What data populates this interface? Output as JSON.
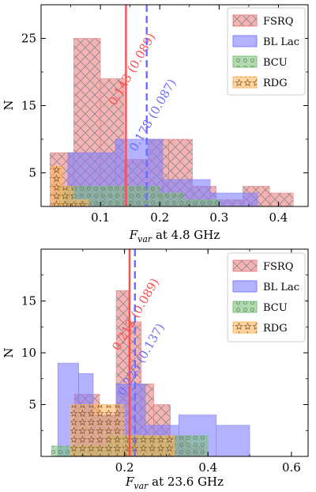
{
  "chart_data": [
    {
      "type": "bar",
      "xlabel_main": "F",
      "xlabel_sub": "var",
      "xlabel_rest": " at 4.8 GHz",
      "ylabel": "N",
      "xlim": [
        0,
        0.45
      ],
      "ylim": [
        0,
        30
      ],
      "xticks": [
        0.1,
        0.2,
        0.3,
        0.4
      ],
      "xtick_labels": [
        "0.1",
        "0.2",
        "0.3",
        "0.4"
      ],
      "yticks": [
        5,
        15,
        25
      ],
      "ytick_labels": [
        "5",
        "15",
        "25"
      ],
      "legend_position": "top-right",
      "series": [
        {
          "name": "FSRQ",
          "color": "#f08080",
          "hatch": "cross",
          "bins": [
            [
              0.015,
              0.055,
              8
            ],
            [
              0.055,
              0.1,
              25
            ],
            [
              0.1,
              0.14,
              19
            ],
            [
              0.14,
              0.18,
              7
            ],
            [
              0.18,
              0.215,
              10
            ],
            [
              0.215,
              0.255,
              10
            ],
            [
              0.255,
              0.295,
              3
            ],
            [
              0.295,
              0.34,
              1
            ],
            [
              0.34,
              0.385,
              3
            ],
            [
              0.385,
              0.425,
              2
            ]
          ]
        },
        {
          "name": "BL Lac",
          "color": "#7f7fff",
          "hatch": "none",
          "bins": [
            [
              0.045,
              0.125,
              8
            ],
            [
              0.125,
              0.205,
              10
            ],
            [
              0.205,
              0.285,
              4
            ],
            [
              0.285,
              0.365,
              2
            ],
            [
              0.365,
              0.445,
              0
            ]
          ]
        },
        {
          "name": "BCU",
          "color": "#7fbf7f",
          "hatch": "circle",
          "bins": [
            [
              0.03,
              0.125,
              3
            ],
            [
              0.125,
              0.2,
              3
            ],
            [
              0.2,
              0.24,
              2
            ],
            [
              0.24,
              0.3,
              1
            ]
          ]
        },
        {
          "name": "RDG",
          "color": "#ffb860",
          "hatch": "star",
          "bins": [
            [
              0.015,
              0.035,
              6
            ],
            [
              0.035,
              0.055,
              3
            ],
            [
              0.055,
              0.08,
              1
            ]
          ]
        }
      ],
      "vlines": [
        {
          "x": 0.143,
          "label": "0.143 (0.089)",
          "color": "#ff4d4d",
          "style": "solid"
        },
        {
          "x": 0.178,
          "label": "0.178 (0.087)",
          "color": "#6d6dff",
          "style": "dashed"
        }
      ]
    },
    {
      "type": "bar",
      "xlabel_main": "F",
      "xlabel_sub": "var",
      "xlabel_rest": " at 23.6 GHz",
      "ylabel": "N",
      "xlim": [
        0,
        0.64
      ],
      "ylim": [
        0,
        20
      ],
      "xticks": [
        0.2,
        0.4,
        0.6
      ],
      "xtick_labels": [
        "0.2",
        "0.4",
        "0.6"
      ],
      "yticks": [
        5,
        10,
        15
      ],
      "ytick_labels": [
        "5",
        "10",
        "15"
      ],
      "legend_position": "top-right",
      "series": [
        {
          "name": "FSRQ",
          "color": "#f08080",
          "hatch": "cross",
          "bins": [
            [
              0.08,
              0.14,
              6
            ],
            [
              0.14,
              0.18,
              4
            ],
            [
              0.18,
              0.21,
              16
            ],
            [
              0.21,
              0.24,
              13
            ],
            [
              0.24,
              0.27,
              7
            ],
            [
              0.27,
              0.31,
              5
            ],
            [
              0.31,
              0.35,
              2
            ],
            [
              0.35,
              0.39,
              1
            ]
          ]
        },
        {
          "name": "BL Lac",
          "color": "#7f7fff",
          "hatch": "none",
          "bins": [
            [
              0.04,
              0.09,
              9
            ],
            [
              0.09,
              0.125,
              8
            ],
            [
              0.125,
              0.18,
              4
            ],
            [
              0.18,
              0.25,
              7
            ],
            [
              0.25,
              0.29,
              3
            ],
            [
              0.29,
              0.33,
              3
            ],
            [
              0.33,
              0.42,
              4
            ],
            [
              0.42,
              0.5,
              3
            ]
          ]
        },
        {
          "name": "BCU",
          "color": "#7fbf7f",
          "hatch": "circle",
          "bins": [
            [
              0.025,
              0.16,
              1
            ],
            [
              0.16,
              0.26,
              2
            ],
            [
              0.26,
              0.32,
              2
            ],
            [
              0.32,
              0.4,
              2
            ]
          ]
        },
        {
          "name": "RDG",
          "color": "#ffb860",
          "hatch": "star",
          "bins": [
            [
              0.07,
              0.2,
              5
            ],
            [
              0.2,
              0.32,
              2
            ]
          ]
        }
      ],
      "vlines": [
        {
          "x": 0.212,
          "label": "0.212 (0.089)",
          "color": "#ff4d4d",
          "style": "solid"
        },
        {
          "x": 0.225,
          "label": "0.225 (0.137)",
          "color": "#6d6dff",
          "style": "dashed"
        }
      ]
    }
  ]
}
